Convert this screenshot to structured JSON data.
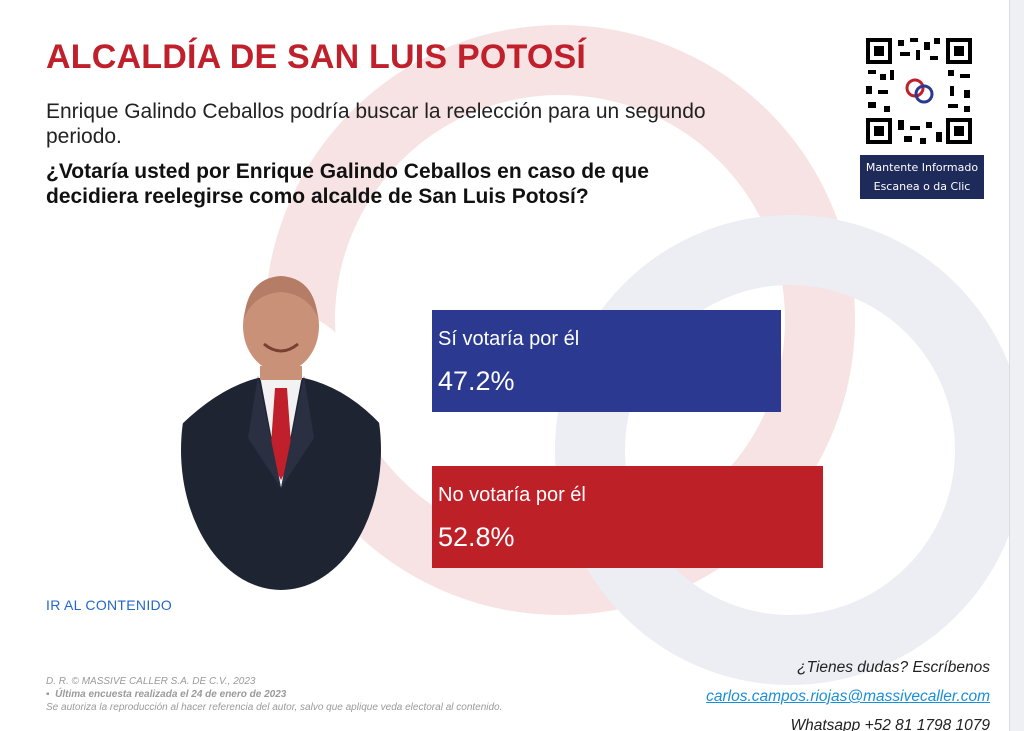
{
  "title": "ALCALDÍA DE SAN LUIS POTOSÍ",
  "subtitle": "Enrique Galindo Ceballos podría buscar la reelección para un segundo periodo.",
  "question": "¿Votaría usted por Enrique Galindo Ceballos en caso de que decidiera reelegirse como alcalde de San Luis Potosí?",
  "qr": {
    "caption_line1": "Mantente Informado",
    "caption_line2": "Escanea o da Clic"
  },
  "chart_data": {
    "type": "bar",
    "orientation": "horizontal",
    "categories": [
      "Sí votaría por él",
      "No votaría por él"
    ],
    "values": [
      47.2,
      52.8
    ],
    "value_labels": [
      "47.2%",
      "52.8%"
    ],
    "colors": [
      "#2b3990",
      "#be2027"
    ],
    "xlim": [
      0,
      100
    ],
    "grid": false,
    "legend": "none"
  },
  "link_text": "IR AL CONTENIDO",
  "footer": {
    "copyright": "D. R. © MASSIVE CALLER S.A. DE C.V., 2023",
    "survey_date": "Última encuesta realizada el 24 de enero de 2023",
    "reproduction": "Se autoriza la reproducción al hacer referencia del autor, salvo que aplique veda electoral al contenido.",
    "contact_prompt": "¿Tienes dudas? Escríbenos",
    "email": "carlos.campos.riojas@massivecaller.com",
    "whatsapp": "Whatsapp +52 81 1798 1079"
  }
}
